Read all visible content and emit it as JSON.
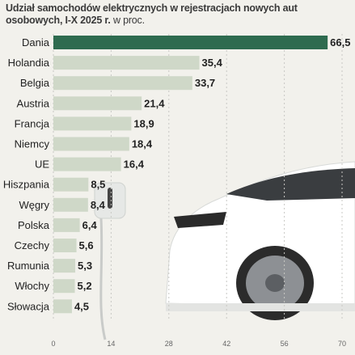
{
  "header": {
    "title": "Udział samochodów elektrycznych w rejestracjach nowych aut osobowych, I-X 2025 r.",
    "unit": "w proc."
  },
  "colors": {
    "highlight": "#2e6b4f",
    "bar": "#cfd8c8",
    "background": "#f2f1ec"
  },
  "chart_data": {
    "type": "bar",
    "orientation": "horizontal",
    "categories": [
      "Dania",
      "Holandia",
      "Belgia",
      "Austria",
      "Francja",
      "Niemcy",
      "UE",
      "Hiszpania",
      "Węgry",
      "Polska",
      "Czechy",
      "Rumunia",
      "Włochy",
      "Słowacja"
    ],
    "values": [
      66.5,
      35.4,
      33.7,
      21.4,
      18.9,
      18.4,
      16.4,
      8.5,
      8.4,
      6.4,
      5.6,
      5.3,
      5.2,
      4.5
    ],
    "value_labels": [
      "66,5",
      "35,4",
      "33,7",
      "21,4",
      "18,9",
      "18,4",
      "16,4",
      "8,5",
      "8,4",
      "6,4",
      "5,6",
      "5,3",
      "5,2",
      "4,5"
    ],
    "highlighted_category": "Dania",
    "xlim": [
      0,
      70
    ],
    "xticks": [
      "0",
      "14",
      "28",
      "42",
      "56",
      "70"
    ],
    "grid": true
  }
}
